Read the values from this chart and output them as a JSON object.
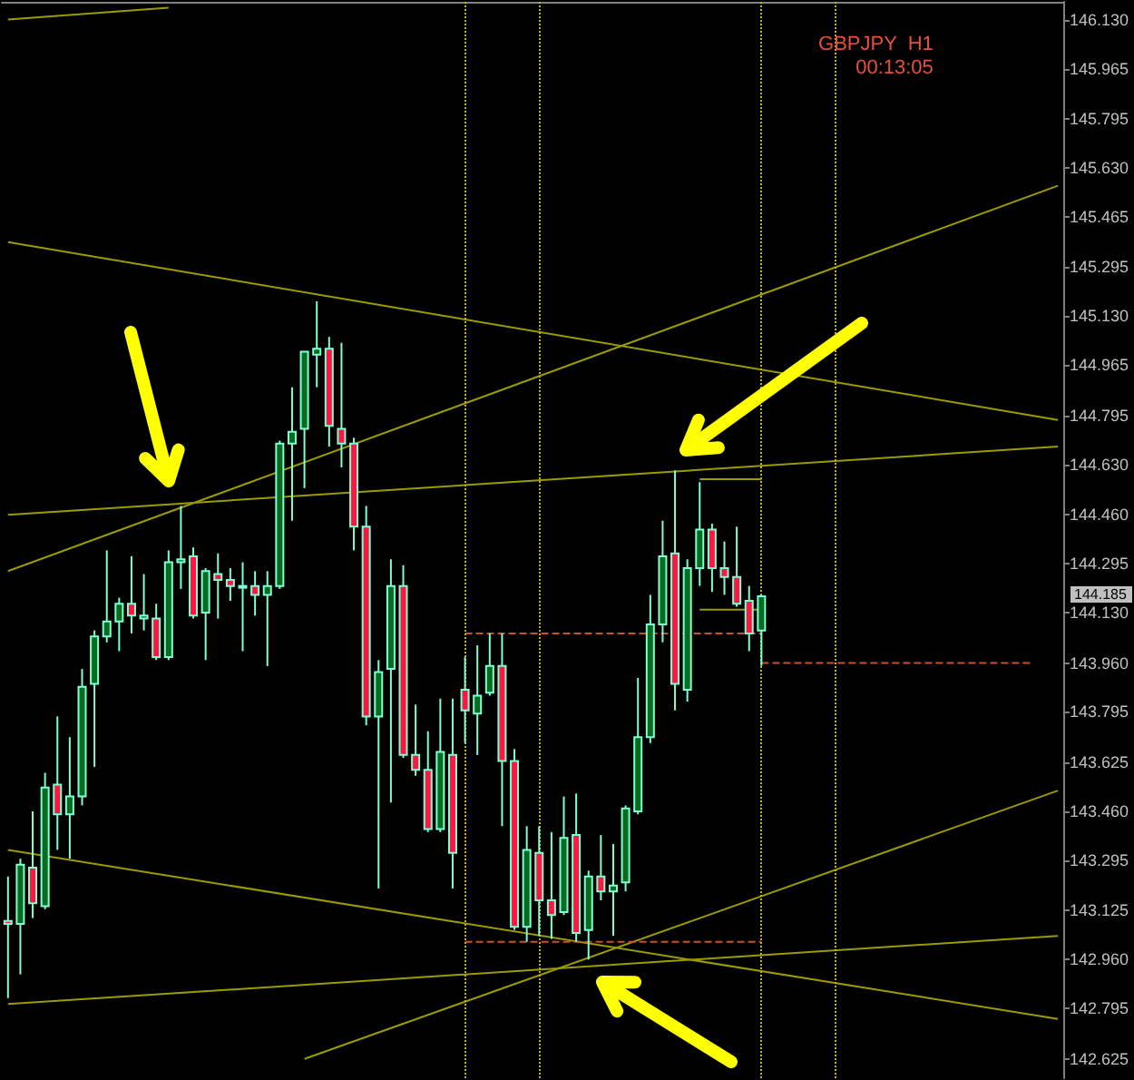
{
  "chart_data": {
    "type": "candlestick",
    "title": "GBPJPY  H1",
    "subtitle": "00:13:05",
    "color": "#7fffd4",
    "categories": [
      null,
      null,
      null,
      null,
      null,
      null,
      null,
      null,
      null,
      null,
      null,
      null,
      null,
      null,
      null,
      null,
      null,
      null,
      null,
      null,
      null,
      null,
      null,
      null,
      null,
      null,
      null,
      null,
      null,
      null,
      null,
      null,
      null,
      null,
      null,
      null,
      null,
      null,
      null,
      null,
      null,
      null,
      null,
      null,
      null,
      null,
      null,
      null,
      null,
      null,
      null,
      null,
      null,
      null,
      null,
      null,
      null,
      null,
      null,
      null,
      null,
      null,
      null,
      null,
      null,
      null,
      null,
      null,
      null,
      null,
      null,
      null,
      null,
      null,
      null,
      null,
      null,
      null,
      null,
      null,
      null,
      null,
      null,
      null,
      null,
      null
    ],
    "ohlc": [
      [
        143.09,
        143.24,
        142.83,
        143.08
      ],
      [
        143.08,
        143.3,
        142.91,
        143.28
      ],
      [
        143.27,
        143.46,
        143.1,
        143.15
      ],
      [
        143.14,
        143.59,
        143.13,
        143.54
      ],
      [
        143.55,
        143.78,
        143.33,
        143.45
      ],
      [
        143.45,
        143.71,
        143.3,
        143.51
      ],
      [
        143.51,
        143.94,
        143.48,
        143.88
      ],
      [
        143.89,
        144.07,
        143.61,
        144.05
      ],
      [
        144.05,
        144.34,
        144.03,
        144.1
      ],
      [
        144.1,
        144.18,
        144.0,
        144.16
      ],
      [
        144.16,
        144.32,
        144.06,
        144.12
      ],
      [
        144.11,
        144.26,
        144.07,
        144.12
      ],
      [
        144.11,
        144.16,
        143.97,
        143.98
      ],
      [
        143.98,
        144.34,
        143.97,
        144.3
      ],
      [
        144.3,
        144.49,
        144.21,
        144.31
      ],
      [
        144.32,
        144.35,
        144.11,
        144.12
      ],
      [
        144.13,
        144.28,
        143.97,
        144.27
      ],
      [
        144.26,
        144.33,
        144.11,
        144.24
      ],
      [
        144.24,
        144.28,
        144.17,
        144.22
      ],
      [
        144.22,
        144.3,
        144.0,
        144.22
      ],
      [
        144.22,
        144.27,
        144.12,
        144.19
      ],
      [
        144.19,
        144.27,
        143.95,
        144.22
      ],
      [
        144.22,
        144.71,
        144.21,
        144.7
      ],
      [
        144.7,
        144.89,
        144.44,
        144.74
      ],
      [
        144.75,
        145.01,
        144.55,
        145.01
      ],
      [
        145.0,
        145.18,
        144.89,
        145.02
      ],
      [
        145.02,
        145.06,
        144.69,
        144.76
      ],
      [
        144.75,
        145.04,
        144.62,
        144.7
      ],
      [
        144.7,
        144.72,
        144.34,
        144.42
      ],
      [
        144.42,
        144.49,
        143.75,
        143.78
      ],
      [
        143.78,
        143.97,
        143.2,
        143.93
      ],
      [
        143.94,
        144.31,
        143.49,
        144.22
      ],
      [
        144.22,
        144.29,
        143.64,
        143.65
      ],
      [
        143.65,
        143.82,
        143.58,
        143.6
      ],
      [
        143.6,
        143.73,
        143.39,
        143.4
      ],
      [
        143.4,
        143.84,
        143.39,
        143.66
      ],
      [
        143.65,
        143.84,
        143.2,
        143.32
      ],
      [
        143.87,
        143.98,
        143.69,
        143.8
      ],
      [
        143.79,
        144.02,
        143.65,
        143.85
      ],
      [
        143.86,
        144.06,
        143.85,
        143.95
      ],
      [
        143.95,
        144.06,
        143.41,
        143.63
      ],
      [
        143.63,
        143.67,
        143.06,
        143.07
      ],
      [
        143.07,
        143.41,
        143.02,
        143.33
      ],
      [
        143.32,
        143.41,
        143.04,
        143.16
      ],
      [
        143.16,
        143.39,
        143.03,
        143.11
      ],
      [
        143.12,
        143.51,
        143.11,
        143.37
      ],
      [
        143.38,
        143.52,
        143.02,
        143.05
      ],
      [
        143.06,
        143.26,
        142.96,
        143.24
      ],
      [
        143.24,
        143.38,
        143.16,
        143.19
      ],
      [
        143.19,
        143.35,
        143.04,
        143.21
      ],
      [
        143.22,
        143.48,
        143.19,
        143.47
      ],
      [
        143.46,
        143.91,
        143.45,
        143.71
      ],
      [
        143.71,
        144.19,
        143.69,
        144.09
      ],
      [
        144.09,
        144.44,
        144.03,
        144.32
      ],
      [
        144.33,
        144.61,
        143.8,
        143.89
      ],
      [
        143.87,
        144.31,
        143.83,
        144.28
      ],
      [
        144.28,
        144.57,
        144.22,
        144.41
      ],
      [
        144.41,
        144.43,
        144.2,
        144.28
      ],
      [
        144.28,
        144.37,
        144.19,
        144.25
      ],
      [
        144.25,
        144.42,
        144.15,
        144.16
      ],
      [
        144.17,
        144.22,
        144.0,
        144.06
      ],
      [
        144.07,
        144.185,
        143.95,
        144.185
      ],
      null,
      null,
      null,
      null,
      null,
      null,
      null,
      null,
      null,
      null,
      null,
      null,
      null,
      null,
      null,
      null,
      null,
      null,
      null,
      null,
      null,
      null,
      null,
      null
    ],
    "series": [
      {
        "type": "line",
        "color": "#9b9b00",
        "values": [
          146.13,
          null,
          null,
          null,
          null,
          null,
          null,
          null,
          null,
          null,
          null,
          null,
          null,
          146.17,
          null,
          null,
          null,
          null,
          null,
          null,
          null,
          null,
          null,
          null,
          null,
          null,
          null,
          null,
          null,
          null,
          null,
          null,
          null,
          null,
          null,
          null,
          null,
          null,
          null,
          null,
          null,
          null,
          null,
          null,
          null,
          null,
          null,
          null,
          null,
          null,
          null,
          null,
          null,
          null,
          null,
          null,
          null,
          null,
          null,
          null,
          null,
          null,
          null,
          null,
          null,
          null,
          null,
          null,
          null,
          null,
          null,
          null,
          null,
          null,
          null,
          null,
          null,
          null,
          null,
          null,
          null,
          null,
          null,
          null,
          null,
          null
        ]
      },
      {
        "type": "line",
        "color": "#9b9b00",
        "values": [
          145.38,
          null,
          null,
          null,
          null,
          null,
          null,
          null,
          null,
          null,
          null,
          null,
          null,
          null,
          null,
          null,
          null,
          null,
          null,
          null,
          null,
          null,
          null,
          null,
          null,
          null,
          null,
          null,
          null,
          null,
          null,
          null,
          null,
          null,
          null,
          null,
          null,
          null,
          null,
          null,
          null,
          null,
          null,
          null,
          null,
          null,
          null,
          null,
          null,
          null,
          null,
          null,
          null,
          null,
          null,
          null,
          null,
          null,
          null,
          null,
          null,
          null,
          null,
          null,
          null,
          null,
          null,
          null,
          null,
          null,
          null,
          null,
          null,
          null,
          null,
          null,
          null,
          null,
          null,
          null,
          null,
          null,
          null,
          null,
          null,
          144.78
        ]
      },
      {
        "type": "line",
        "color": "#9b9b00",
        "values": [
          144.27,
          null,
          null,
          null,
          null,
          null,
          null,
          null,
          null,
          null,
          null,
          null,
          null,
          null,
          null,
          null,
          null,
          null,
          null,
          null,
          null,
          null,
          null,
          null,
          null,
          null,
          null,
          null,
          null,
          null,
          null,
          null,
          null,
          null,
          null,
          null,
          null,
          null,
          null,
          null,
          null,
          null,
          null,
          null,
          null,
          null,
          null,
          null,
          null,
          null,
          null,
          null,
          null,
          null,
          null,
          null,
          null,
          null,
          null,
          null,
          null,
          null,
          null,
          null,
          null,
          null,
          null,
          null,
          null,
          null,
          null,
          null,
          null,
          null,
          null,
          null,
          null,
          null,
          null,
          null,
          null,
          null,
          null,
          null,
          null,
          145.57
        ]
      },
      {
        "type": "line",
        "color": "#9b9b00",
        "values": [
          144.46,
          null,
          null,
          null,
          null,
          null,
          null,
          null,
          null,
          null,
          null,
          null,
          null,
          null,
          null,
          null,
          null,
          null,
          null,
          null,
          null,
          null,
          null,
          null,
          null,
          null,
          null,
          null,
          null,
          null,
          null,
          null,
          null,
          null,
          null,
          null,
          null,
          null,
          null,
          null,
          null,
          null,
          null,
          null,
          null,
          null,
          null,
          null,
          null,
          null,
          null,
          null,
          null,
          null,
          null,
          null,
          null,
          null,
          null,
          null,
          null,
          null,
          null,
          null,
          null,
          null,
          null,
          null,
          null,
          null,
          null,
          null,
          null,
          null,
          null,
          null,
          null,
          null,
          null,
          null,
          null,
          null,
          null,
          null,
          null,
          144.69
        ]
      },
      {
        "type": "line",
        "color": "#9b9b00",
        "values": [
          143.33,
          null,
          null,
          null,
          null,
          null,
          null,
          null,
          null,
          null,
          null,
          null,
          null,
          null,
          null,
          null,
          null,
          null,
          null,
          null,
          null,
          null,
          null,
          null,
          null,
          null,
          null,
          null,
          null,
          null,
          null,
          null,
          null,
          null,
          null,
          null,
          null,
          null,
          null,
          null,
          null,
          null,
          null,
          null,
          null,
          null,
          null,
          null,
          null,
          null,
          null,
          null,
          null,
          null,
          null,
          null,
          null,
          null,
          null,
          null,
          null,
          null,
          null,
          null,
          null,
          null,
          null,
          null,
          null,
          null,
          null,
          null,
          null,
          null,
          null,
          null,
          null,
          null,
          null,
          null,
          null,
          null,
          null,
          null,
          null,
          142.76
        ]
      },
      {
        "type": "line",
        "color": "#9b9b00",
        "values": [
          142.81,
          null,
          null,
          null,
          null,
          null,
          null,
          null,
          null,
          null,
          null,
          null,
          null,
          null,
          null,
          null,
          null,
          null,
          null,
          null,
          null,
          null,
          null,
          null,
          null,
          null,
          null,
          null,
          null,
          null,
          null,
          null,
          null,
          null,
          null,
          null,
          null,
          null,
          null,
          null,
          null,
          null,
          null,
          null,
          null,
          null,
          null,
          null,
          null,
          null,
          null,
          null,
          null,
          null,
          null,
          null,
          null,
          null,
          null,
          null,
          null,
          null,
          null,
          null,
          null,
          null,
          null,
          null,
          null,
          null,
          null,
          null,
          null,
          null,
          null,
          null,
          null,
          null,
          null,
          null,
          null,
          null,
          null,
          null,
          null,
          143.04
        ]
      },
      {
        "type": "line",
        "color": "#9b9b00",
        "values": [
          null,
          null,
          null,
          null,
          null,
          null,
          null,
          null,
          null,
          null,
          null,
          null,
          null,
          null,
          null,
          null,
          null,
          null,
          null,
          null,
          null,
          null,
          null,
          null,
          142.625,
          null,
          null,
          null,
          null,
          null,
          null,
          null,
          null,
          null,
          null,
          null,
          null,
          null,
          null,
          null,
          null,
          null,
          null,
          null,
          null,
          null,
          null,
          null,
          null,
          null,
          null,
          null,
          null,
          null,
          null,
          null,
          null,
          null,
          null,
          null,
          null,
          null,
          null,
          null,
          null,
          null,
          null,
          null,
          null,
          null,
          null,
          null,
          null,
          null,
          null,
          null,
          null,
          null,
          null,
          null,
          null,
          null,
          null,
          null,
          null,
          143.53
        ]
      },
      {
        "type": "line",
        "color": "#9b9b00",
        "values": [
          null,
          null,
          null,
          null,
          null,
          null,
          null,
          null,
          null,
          null,
          null,
          null,
          null,
          null,
          null,
          null,
          null,
          null,
          null,
          null,
          null,
          null,
          null,
          null,
          null,
          null,
          null,
          null,
          null,
          null,
          null,
          null,
          null,
          null,
          null,
          null,
          null,
          null,
          null,
          null,
          null,
          null,
          null,
          null,
          null,
          null,
          null,
          null,
          null,
          null,
          null,
          null,
          null,
          null,
          null,
          null,
          144.58,
          null,
          null,
          null,
          null,
          144.58,
          null,
          null,
          null,
          null,
          null,
          null,
          null,
          null,
          null,
          null,
          null,
          null,
          null,
          null,
          null,
          null,
          null,
          null,
          null,
          null,
          null,
          null,
          null,
          null
        ]
      },
      {
        "type": "line",
        "color": "#9b9b00",
        "values": [
          null,
          null,
          null,
          null,
          null,
          null,
          null,
          null,
          null,
          null,
          null,
          null,
          null,
          null,
          null,
          null,
          null,
          null,
          null,
          null,
          null,
          null,
          null,
          null,
          null,
          null,
          null,
          null,
          null,
          null,
          null,
          null,
          null,
          null,
          null,
          null,
          null,
          null,
          null,
          null,
          null,
          null,
          null,
          null,
          null,
          null,
          null,
          null,
          null,
          null,
          null,
          null,
          null,
          null,
          null,
          null,
          144.14,
          null,
          null,
          null,
          null,
          144.14,
          null,
          null,
          null,
          null,
          null,
          null,
          null,
          null,
          null,
          null,
          null,
          null,
          null,
          null,
          null,
          null,
          null,
          null,
          null,
          null,
          null,
          null,
          null,
          null
        ]
      },
      {
        "type": "line",
        "color": "#c8502a",
        "line_style": "dashed",
        "values": [
          null,
          null,
          null,
          null,
          null,
          null,
          null,
          null,
          null,
          null,
          null,
          null,
          null,
          null,
          null,
          null,
          null,
          null,
          null,
          null,
          null,
          null,
          null,
          null,
          null,
          null,
          null,
          null,
          null,
          null,
          null,
          null,
          null,
          null,
          null,
          null,
          null,
          144.06,
          null,
          null,
          null,
          null,
          null,
          null,
          null,
          null,
          null,
          null,
          null,
          null,
          null,
          null,
          null,
          null,
          null,
          null,
          null,
          null,
          null,
          null,
          null,
          144.06,
          null,
          null,
          null,
          null,
          null,
          null,
          null,
          null,
          null,
          null,
          null,
          null,
          null,
          null,
          null,
          null,
          null,
          null,
          null,
          null,
          null,
          null,
          null,
          null
        ]
      },
      {
        "type": "line",
        "color": "#c8502a",
        "line_style": "dashed",
        "values": [
          null,
          null,
          null,
          null,
          null,
          null,
          null,
          null,
          null,
          null,
          null,
          null,
          null,
          null,
          null,
          null,
          null,
          null,
          null,
          null,
          null,
          null,
          null,
          null,
          null,
          null,
          null,
          null,
          null,
          null,
          null,
          null,
          null,
          null,
          null,
          null,
          null,
          143.02,
          null,
          null,
          null,
          null,
          null,
          null,
          null,
          null,
          null,
          null,
          null,
          null,
          null,
          null,
          null,
          null,
          null,
          null,
          null,
          null,
          null,
          null,
          null,
          143.02,
          null,
          null,
          null,
          null,
          null,
          null,
          null,
          null,
          null,
          null,
          null,
          null,
          null,
          null,
          null,
          null,
          null,
          null,
          null,
          null,
          null,
          null,
          null,
          null
        ]
      },
      {
        "type": "line",
        "color": "#c8502a",
        "line_style": "dashed",
        "values": [
          null,
          null,
          null,
          null,
          null,
          null,
          null,
          null,
          null,
          null,
          null,
          null,
          null,
          null,
          null,
          null,
          null,
          null,
          null,
          null,
          null,
          null,
          null,
          null,
          null,
          null,
          null,
          null,
          null,
          null,
          null,
          null,
          null,
          null,
          null,
          null,
          null,
          null,
          null,
          null,
          null,
          null,
          null,
          null,
          null,
          null,
          null,
          null,
          null,
          null,
          null,
          null,
          null,
          null,
          null,
          null,
          null,
          null,
          null,
          null,
          null,
          143.96,
          null,
          null,
          null,
          null,
          null,
          null,
          null,
          null,
          null,
          null,
          null,
          null,
          null,
          null,
          null,
          null,
          null,
          null,
          null,
          null,
          null,
          143.96,
          null,
          null
        ]
      }
    ],
    "annotations": [
      "144.185"
    ],
    "ylim": [
      142.56,
      146.19
    ],
    "yticks": [
      {
        "value": 146.13,
        "label": "146.130"
      },
      {
        "value": 145.965,
        "label": "145.965"
      },
      {
        "value": 145.795,
        "label": "145.795"
      },
      {
        "value": 145.63,
        "label": "145.630"
      },
      {
        "value": 145.465,
        "label": "145.465"
      },
      {
        "value": 145.295,
        "label": "145.295"
      },
      {
        "value": 145.13,
        "label": "145.130"
      },
      {
        "value": 144.965,
        "label": "144.965"
      },
      {
        "value": 144.795,
        "label": "144.795"
      },
      {
        "value": 144.63,
        "label": "144.630"
      },
      {
        "value": 144.46,
        "label": "144.460"
      },
      {
        "value": 144.295,
        "label": "144.295"
      },
      {
        "value": 144.13,
        "label": "144.130"
      },
      {
        "value": 143.96,
        "label": "143.960"
      },
      {
        "value": 143.795,
        "label": "143.795"
      },
      {
        "value": 143.625,
        "label": "143.625"
      },
      {
        "value": 143.46,
        "label": "143.460"
      },
      {
        "value": 143.295,
        "label": "143.295"
      },
      {
        "value": 143.125,
        "label": "143.125"
      },
      {
        "value": 142.96,
        "label": "142.960"
      },
      {
        "value": 142.795,
        "label": "142.795"
      },
      {
        "value": 142.625,
        "label": "142.625"
      }
    ],
    "tick_labels": "y",
    "grid": "x"
  }
}
